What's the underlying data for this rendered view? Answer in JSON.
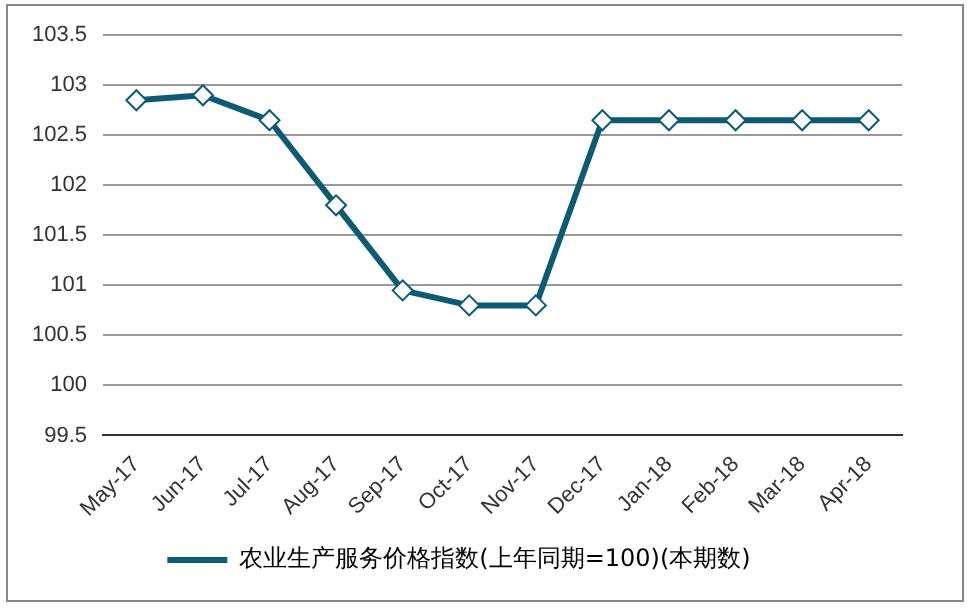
{
  "chart_data": {
    "type": "line",
    "categories": [
      "May-17",
      "Jun-17",
      "Jul-17",
      "Aug-17",
      "Sep-17",
      "Oct-17",
      "Nov-17",
      "Dec-17",
      "Jan-18",
      "Feb-18",
      "Mar-18",
      "Apr-18"
    ],
    "series": [
      {
        "name": "农业生产服务价格指数(上年同期=100)(本期数)",
        "color": "#0d5a73",
        "values": [
          102.85,
          102.9,
          102.65,
          101.8,
          100.95,
          100.8,
          100.8,
          102.65,
          102.65,
          102.65,
          102.65,
          102.65
        ]
      }
    ],
    "ylim": [
      99.5,
      103.5
    ],
    "yticks": [
      {
        "value": 99.5,
        "label": "99.5"
      },
      {
        "value": 100,
        "label": "100"
      },
      {
        "value": 100.5,
        "label": "100.5"
      },
      {
        "value": 101,
        "label": "101"
      },
      {
        "value": 101.5,
        "label": "101.5"
      },
      {
        "value": 102,
        "label": "102"
      },
      {
        "value": 102.5,
        "label": "102.5"
      },
      {
        "value": 103,
        "label": "103"
      },
      {
        "value": 103.5,
        "label": "103.5"
      }
    ],
    "grid": "y",
    "legend": "bottom",
    "marker": "diamond",
    "line_style": "solid"
  }
}
